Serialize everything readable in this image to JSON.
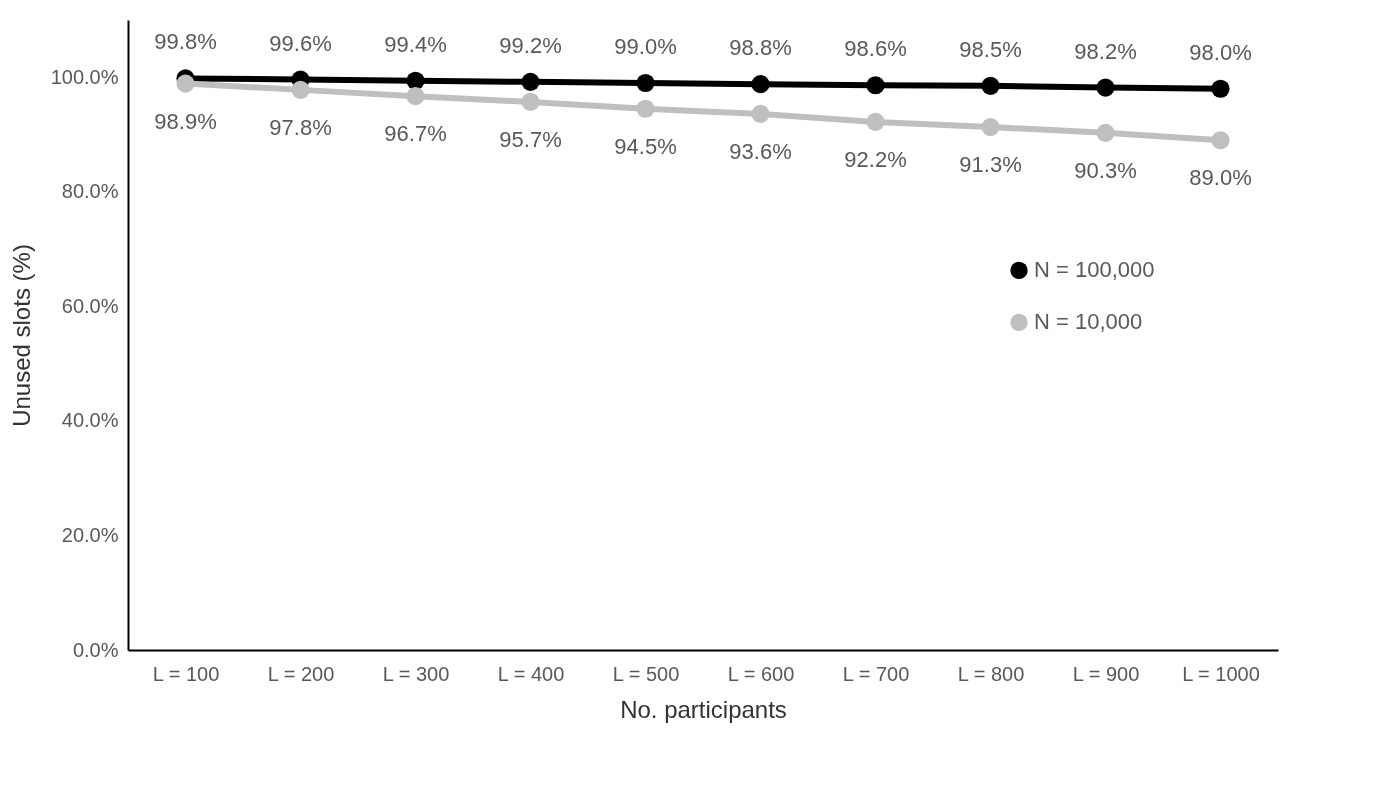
{
  "chart_data": {
    "type": "line",
    "xlabel": "No. participants",
    "ylabel": "Unused slots (%)",
    "categories": [
      "L = 100",
      "L = 200",
      "L = 300",
      "L = 400",
      "L = 500",
      "L = 600",
      "L = 700",
      "L = 800",
      "L = 900",
      "L = 1000"
    ],
    "series": [
      {
        "name": "N = 100,000",
        "color": "#000000",
        "values": [
          99.8,
          99.6,
          99.4,
          99.2,
          99.0,
          98.8,
          98.6,
          98.5,
          98.2,
          98.0
        ],
        "value_labels": [
          "99.8%",
          "99.6%",
          "99.4%",
          "99.2%",
          "99.0%",
          "98.8%",
          "98.6%",
          "98.5%",
          "98.2%",
          "98.0%"
        ]
      },
      {
        "name": "N = 10,000",
        "color": "#bfbfbf",
        "values": [
          98.9,
          97.8,
          96.7,
          95.7,
          94.5,
          93.6,
          92.2,
          91.3,
          90.3,
          89.0
        ],
        "value_labels": [
          "98.9%",
          "97.8%",
          "96.7%",
          "95.7%",
          "94.5%",
          "93.6%",
          "92.2%",
          "91.3%",
          "90.3%",
          "89.0%"
        ]
      }
    ],
    "ylim": [
      0,
      110
    ],
    "yticks": [
      {
        "value": 0,
        "label": "0.0%"
      },
      {
        "value": 20,
        "label": "20.0%"
      },
      {
        "value": 40,
        "label": "40.0%"
      },
      {
        "value": 60,
        "label": "60.0%"
      },
      {
        "value": 80,
        "label": "80.0%"
      },
      {
        "value": 100,
        "label": "100.0%"
      }
    ],
    "grid": false,
    "legend": "right",
    "marker": "circle",
    "line_style": "solid"
  }
}
